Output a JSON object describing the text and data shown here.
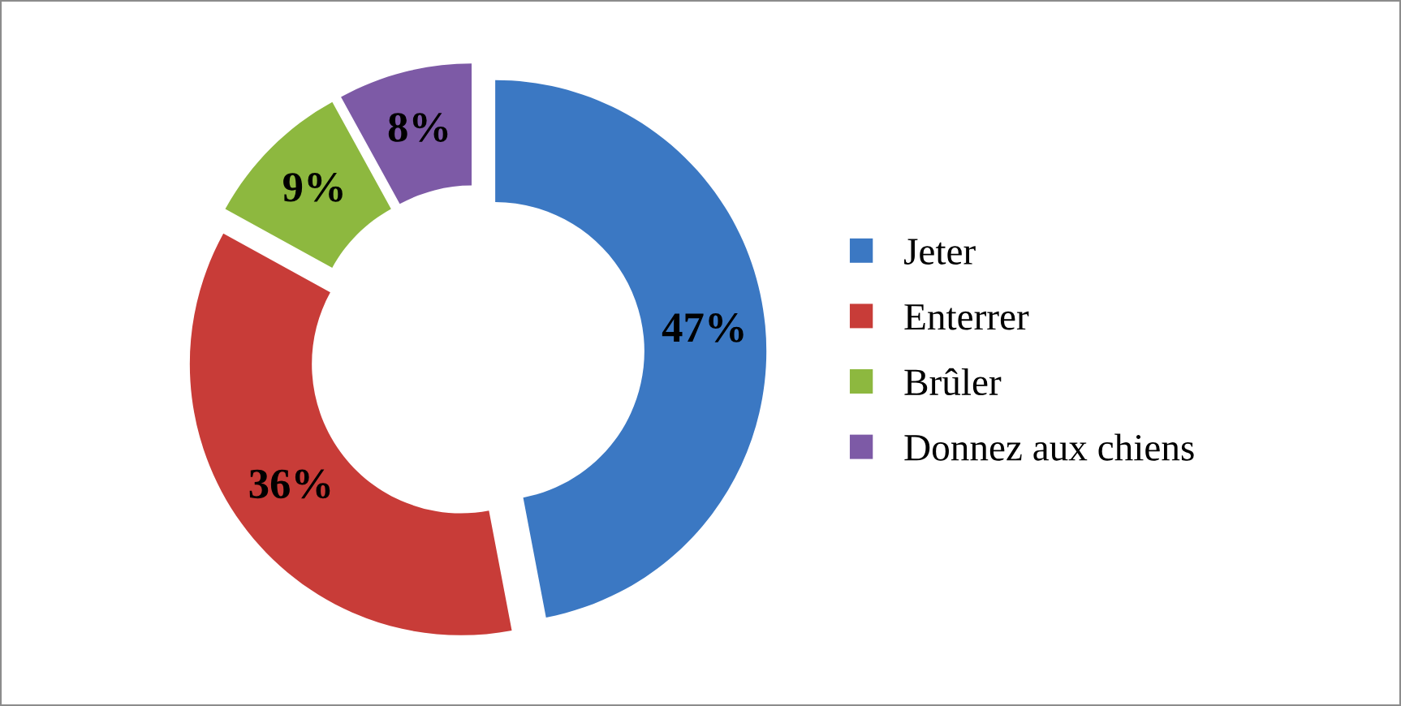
{
  "chart_data": {
    "type": "donut",
    "categories": [
      "Jeter",
      "Enterrer",
      "Brûler",
      "Donnez aux chiens"
    ],
    "values": [
      47,
      36,
      9,
      8
    ],
    "value_labels": [
      "47%",
      "36%",
      "9%",
      "8%"
    ],
    "colors": [
      "#3b78c3",
      "#c83c38",
      "#8db83f",
      "#7d5aa6"
    ],
    "legend": "right"
  }
}
